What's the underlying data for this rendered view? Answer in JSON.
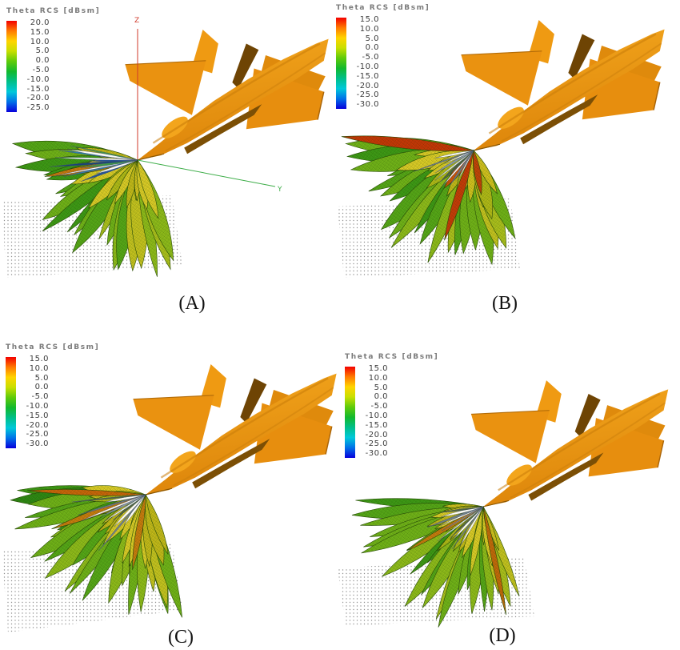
{
  "figure": {
    "panels": [
      {
        "id": "A",
        "label": "(A)",
        "colorbar": {
          "title": "Theta RCS [dBsm]",
          "ticks": [
            "20.0",
            "15.0",
            "10.0",
            "5.0",
            "0.0",
            "-5.0",
            "-10.0",
            "-15.0",
            "-20.0",
            "-25.0"
          ]
        }
      },
      {
        "id": "B",
        "label": "(B)",
        "colorbar": {
          "title": "Theta RCS [dBsm]",
          "ticks": [
            "15.0",
            "10.0",
            "5.0",
            "0.0",
            "-5.0",
            "-10.0",
            "-15.0",
            "-20.0",
            "-25.0",
            "-30.0"
          ]
        }
      },
      {
        "id": "C",
        "label": "(C)",
        "colorbar": {
          "title": "Theta RCS [dBsm]",
          "ticks": [
            "15.0",
            "10.0",
            "5.0",
            "0.0",
            "-5.0",
            "-10.0",
            "-15.0",
            "-20.0",
            "-25.0",
            "-30.0"
          ]
        }
      },
      {
        "id": "D",
        "label": "(D)",
        "colorbar": {
          "title": "Theta RCS [dBsm]",
          "ticks": [
            "15.0",
            "10.0",
            "5.0",
            "0.0",
            "-5.0",
            "-10.0",
            "-15.0",
            "-20.0",
            "-25.0",
            "-30.0"
          ]
        }
      }
    ],
    "axis_labels": {
      "z": "Z",
      "y": "Y"
    },
    "colorbar_gradient": [
      "#f20000",
      "#ff7a00",
      "#ffd400",
      "#c8df00",
      "#5ecb0a",
      "#12b92e",
      "#00bf8a",
      "#00c8da",
      "#0070e8",
      "#0800dc"
    ]
  },
  "colors": {
    "aircraft_orange": "#E8920E",
    "aircraft_shadow": "#7A4E06",
    "axis_z": "#d03a2a",
    "axis_y": "#3fae4a",
    "lobe_green": "#58aa18",
    "lobe_yellow": "#d8c51f",
    "lobe_red": "#cc3606",
    "ground_dot": "#8f8f8f"
  },
  "chart_data": [
    {
      "type": "other",
      "subtype": "3d-rcs-lobe-pattern",
      "panel": "A",
      "title": "Theta RCS [dBsm]",
      "colorbar_ticks": [
        20,
        15,
        10,
        5,
        0,
        -5,
        -10,
        -15,
        -20,
        -25
      ],
      "colorbar_range": [
        -25,
        20
      ],
      "legend_position": "top-left",
      "axes_shown": [
        "Z",
        "Y"
      ],
      "description": "3D theta-polarized RCS lobe pattern radiating from fighter-aircraft nose over a dotted ground grid"
    },
    {
      "type": "other",
      "subtype": "3d-rcs-lobe-pattern",
      "panel": "B",
      "title": "Theta RCS [dBsm]",
      "colorbar_ticks": [
        15,
        10,
        5,
        0,
        -5,
        -10,
        -15,
        -20,
        -25,
        -30
      ],
      "colorbar_range": [
        -30,
        15
      ],
      "legend_position": "top-left",
      "axes_shown": [],
      "description": "3D RCS lobe pattern with strong red high-RCS lobes toward the horizontal direction"
    },
    {
      "type": "other",
      "subtype": "3d-rcs-lobe-pattern",
      "panel": "C",
      "title": "Theta RCS [dBsm]",
      "colorbar_ticks": [
        15,
        10,
        5,
        0,
        -5,
        -10,
        -15,
        -20,
        -25,
        -30
      ],
      "colorbar_range": [
        -30,
        15
      ],
      "legend_position": "top-left",
      "axes_shown": [],
      "description": "Dense green-yellow RCS lobe fan below aircraft nose"
    },
    {
      "type": "other",
      "subtype": "3d-rcs-lobe-pattern",
      "panel": "D",
      "title": "Theta RCS [dBsm]",
      "colorbar_ticks": [
        15,
        10,
        5,
        0,
        -5,
        -10,
        -15,
        -20,
        -25,
        -30
      ],
      "colorbar_range": [
        -30,
        15
      ],
      "legend_position": "top-left",
      "axes_shown": [],
      "description": "Dense narrow green RCS lobe fan below aircraft nose"
    }
  ]
}
